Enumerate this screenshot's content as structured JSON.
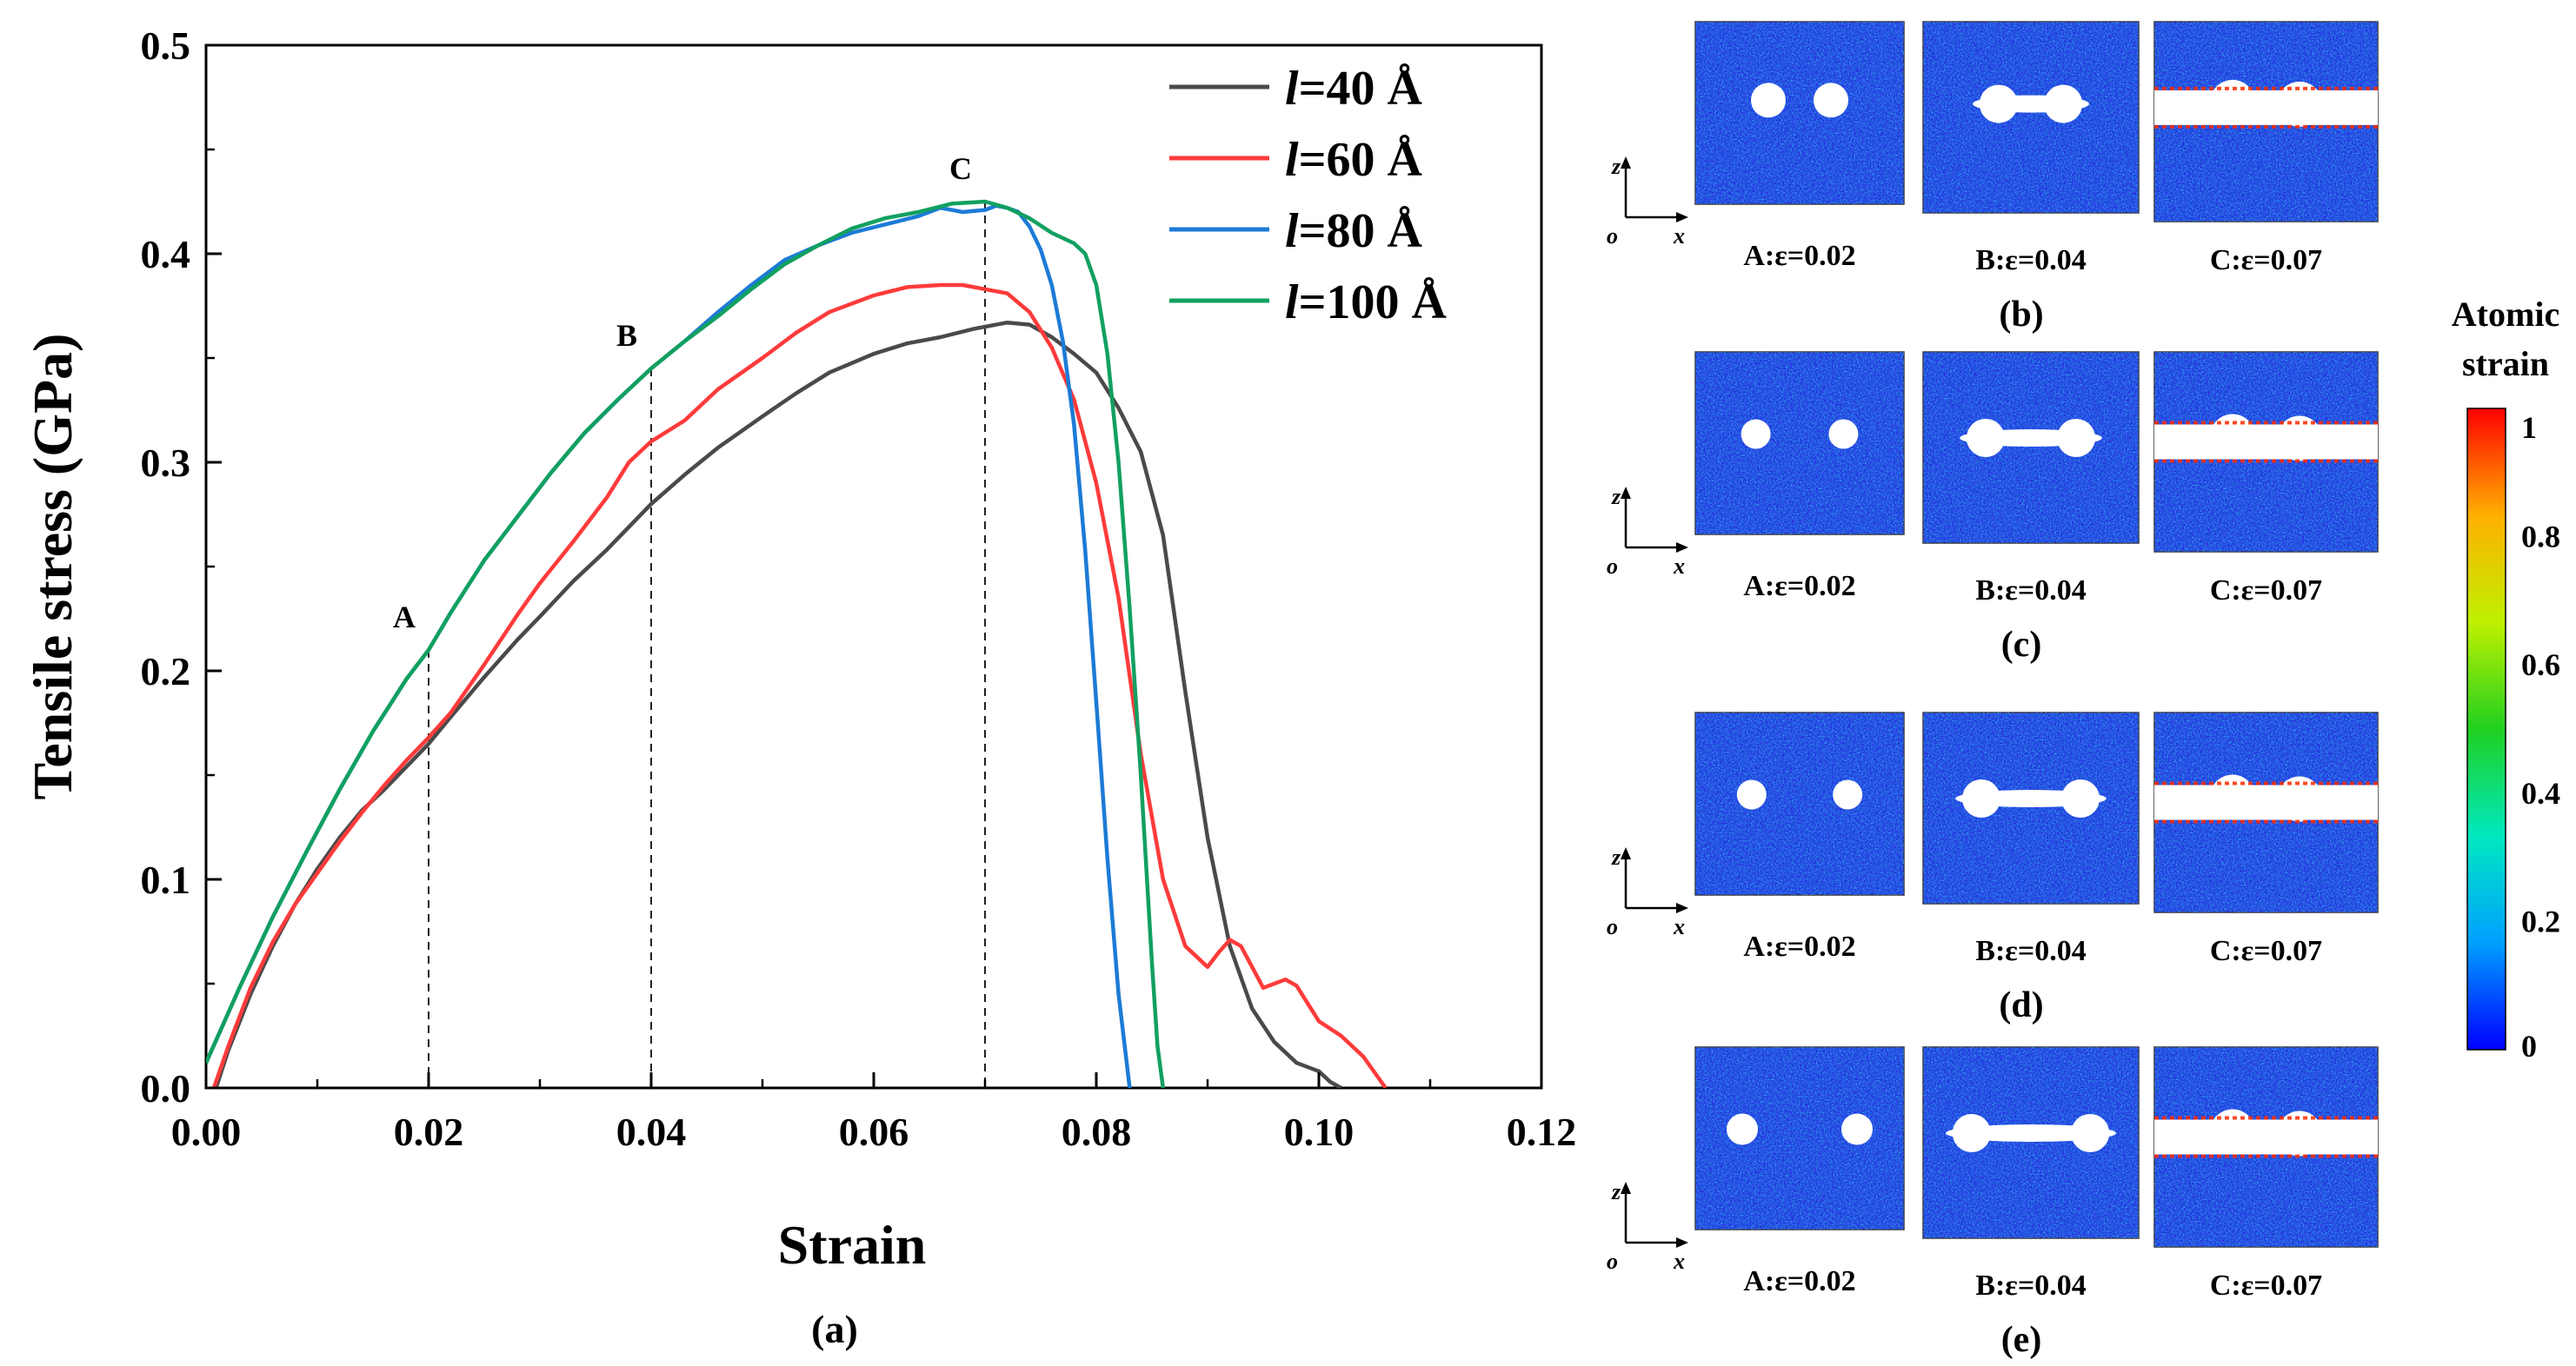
{
  "chart_data": {
    "type": "line",
    "title": "",
    "xlabel": "Strain",
    "ylabel": "Tensile stress (GPa)",
    "panel_label": "(a)",
    "xlim": [
      0.0,
      0.12
    ],
    "ylim": [
      0.0,
      0.5
    ],
    "xticks": [
      "0.00",
      "0.02",
      "0.04",
      "0.06",
      "0.08",
      "0.10",
      "0.12"
    ],
    "yticks": [
      "0.0",
      "0.1",
      "0.2",
      "0.3",
      "0.4",
      "0.5"
    ],
    "legend_position": "top-right",
    "series": [
      {
        "name_italic": "l",
        "name_rest": "=40 Å",
        "color": "#4a4a4a",
        "x": [
          0.0009,
          0.002,
          0.004,
          0.006,
          0.008,
          0.01,
          0.012,
          0.014,
          0.016,
          0.018,
          0.02,
          0.022,
          0.025,
          0.028,
          0.03,
          0.033,
          0.036,
          0.04,
          0.043,
          0.046,
          0.05,
          0.053,
          0.056,
          0.06,
          0.063,
          0.066,
          0.069,
          0.072,
          0.074,
          0.076,
          0.078,
          0.08,
          0.082,
          0.084,
          0.086,
          0.088,
          0.09,
          0.092,
          0.094,
          0.096,
          0.098,
          0.1,
          0.101,
          0.102
        ],
        "y": [
          0.0,
          0.018,
          0.045,
          0.068,
          0.088,
          0.105,
          0.12,
          0.133,
          0.143,
          0.154,
          0.165,
          0.178,
          0.197,
          0.215,
          0.226,
          0.243,
          0.258,
          0.28,
          0.294,
          0.307,
          0.322,
          0.333,
          0.343,
          0.352,
          0.357,
          0.36,
          0.364,
          0.367,
          0.366,
          0.36,
          0.352,
          0.343,
          0.326,
          0.305,
          0.265,
          0.19,
          0.12,
          0.068,
          0.038,
          0.022,
          0.012,
          0.008,
          0.003,
          0.0
        ]
      },
      {
        "name_italic": "l",
        "name_rest": "=60 Å",
        "color": "#ff3b3b",
        "x": [
          0.0007,
          0.002,
          0.004,
          0.006,
          0.008,
          0.01,
          0.012,
          0.014,
          0.016,
          0.018,
          0.02,
          0.022,
          0.025,
          0.028,
          0.03,
          0.033,
          0.036,
          0.038,
          0.04,
          0.043,
          0.046,
          0.05,
          0.053,
          0.056,
          0.06,
          0.063,
          0.066,
          0.068,
          0.07,
          0.072,
          0.074,
          0.076,
          0.078,
          0.08,
          0.082,
          0.084,
          0.086,
          0.088,
          0.09,
          0.091,
          0.092,
          0.093,
          0.095,
          0.097,
          0.098,
          0.1,
          0.102,
          0.104,
          0.106
        ],
        "y": [
          0.0,
          0.02,
          0.048,
          0.07,
          0.088,
          0.103,
          0.118,
          0.132,
          0.145,
          0.157,
          0.168,
          0.18,
          0.203,
          0.227,
          0.242,
          0.262,
          0.283,
          0.3,
          0.31,
          0.32,
          0.335,
          0.35,
          0.362,
          0.372,
          0.38,
          0.384,
          0.385,
          0.385,
          0.383,
          0.381,
          0.372,
          0.355,
          0.33,
          0.29,
          0.235,
          0.16,
          0.1,
          0.068,
          0.058,
          0.065,
          0.071,
          0.068,
          0.048,
          0.052,
          0.049,
          0.032,
          0.025,
          0.015,
          0.0
        ]
      },
      {
        "name_italic": "l",
        "name_rest": "=80 Å",
        "color": "#1c7bd6",
        "x": [
          0.0,
          0.003,
          0.006,
          0.009,
          0.012,
          0.015,
          0.018,
          0.02,
          0.022,
          0.025,
          0.028,
          0.031,
          0.034,
          0.037,
          0.04,
          0.043,
          0.046,
          0.049,
          0.052,
          0.055,
          0.058,
          0.061,
          0.064,
          0.066,
          0.068,
          0.07,
          0.071,
          0.072,
          0.073,
          0.074,
          0.075,
          0.076,
          0.077,
          0.078,
          0.079,
          0.08,
          0.081,
          0.082,
          0.083
        ],
        "y": [
          0.012,
          0.048,
          0.082,
          0.113,
          0.143,
          0.171,
          0.196,
          0.21,
          0.228,
          0.253,
          0.274,
          0.295,
          0.314,
          0.33,
          0.345,
          0.358,
          0.372,
          0.385,
          0.397,
          0.404,
          0.41,
          0.414,
          0.418,
          0.422,
          0.42,
          0.421,
          0.423,
          0.422,
          0.42,
          0.413,
          0.402,
          0.385,
          0.358,
          0.318,
          0.258,
          0.185,
          0.11,
          0.045,
          0.0
        ]
      },
      {
        "name_italic": "l",
        "name_rest": "=100 Å",
        "color": "#12a060",
        "x": [
          0.0,
          0.003,
          0.006,
          0.009,
          0.012,
          0.015,
          0.018,
          0.02,
          0.022,
          0.025,
          0.028,
          0.031,
          0.034,
          0.037,
          0.04,
          0.043,
          0.046,
          0.049,
          0.052,
          0.055,
          0.058,
          0.061,
          0.064,
          0.067,
          0.07,
          0.072,
          0.074,
          0.076,
          0.078,
          0.079,
          0.08,
          0.081,
          0.082,
          0.083,
          0.084,
          0.085,
          0.0855,
          0.086
        ],
        "y": [
          0.012,
          0.048,
          0.082,
          0.113,
          0.143,
          0.171,
          0.196,
          0.21,
          0.228,
          0.253,
          0.274,
          0.295,
          0.314,
          0.33,
          0.345,
          0.358,
          0.37,
          0.383,
          0.395,
          0.404,
          0.412,
          0.417,
          0.42,
          0.424,
          0.425,
          0.422,
          0.417,
          0.41,
          0.405,
          0.4,
          0.385,
          0.352,
          0.3,
          0.23,
          0.15,
          0.06,
          0.02,
          0.0
        ]
      }
    ],
    "markers": [
      {
        "label": "A",
        "x": 0.02,
        "y": 0.21
      },
      {
        "label": "B",
        "x": 0.04,
        "y": 0.345
      },
      {
        "label": "C",
        "x": 0.07,
        "y": 0.425
      }
    ]
  },
  "snapshots": {
    "rows": [
      {
        "panel": "(b)",
        "labels": [
          "A:ε=0.02",
          "B:ε=0.04",
          "C:ε=0.07"
        ]
      },
      {
        "panel": "(c)",
        "labels": [
          "A:ε=0.02",
          "B:ε=0.04",
          "C:ε=0.07"
        ]
      },
      {
        "panel": "(d)",
        "labels": [
          "A:ε=0.02",
          "B:ε=0.04",
          "C:ε=0.07"
        ]
      },
      {
        "panel": "(e)",
        "labels": [
          "A:ε=0.02",
          "B:ε=0.04",
          "C:ε=0.07"
        ]
      }
    ],
    "axes": {
      "z": "z",
      "o": "o",
      "x": "x"
    }
  },
  "colorbar": {
    "title_line1": "Atomic",
    "title_line2": "strain",
    "ticks": [
      "1",
      "0.8",
      "0.6",
      "0.4",
      "0.2",
      "0"
    ],
    "colors": [
      "#0000ff",
      "#00a0ff",
      "#00e8c0",
      "#20d020",
      "#c0f000",
      "#ffb000",
      "#ff0000"
    ]
  }
}
